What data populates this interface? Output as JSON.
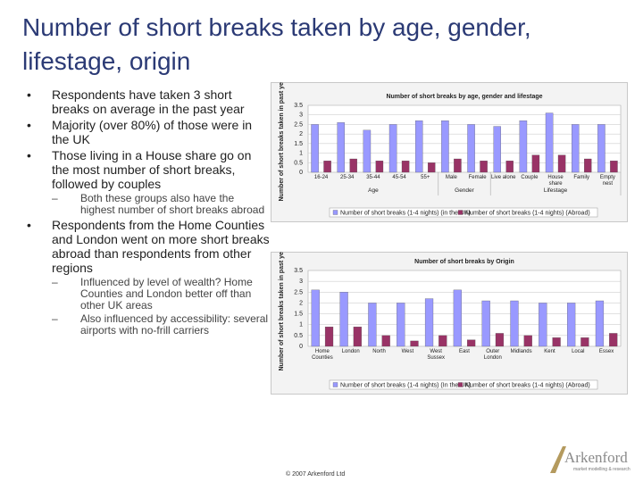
{
  "title": "Number of short breaks taken by age, gender, lifestage, origin",
  "bullets": [
    {
      "text": "Respondents have taken 3 short breaks on average in the past year"
    },
    {
      "text": "Majority (over 80%) of those were in the UK"
    },
    {
      "text": "Those living in a House share go on the most number of short breaks, followed by couples",
      "sub": [
        "Both these groups also have the highest number of short breaks abroad"
      ]
    },
    {
      "text": "Respondents from the Home Counties and London went on more short breaks abroad than respondents from other regions",
      "sub": [
        "Influenced by level of wealth? Home Counties and London better off than other UK areas",
        "Also influenced by accessibility: several airports with no-frill carriers"
      ]
    }
  ],
  "footer": "© 2007 Arkenford Ltd",
  "logo": {
    "name": "Arkenford",
    "tagline": "market modelling & research"
  },
  "chart_data": [
    {
      "type": "bar",
      "title": "Number of short breaks by  age, gender and lifestage",
      "y_label": "Number of short breaks taken in past year",
      "categories": [
        "16-24",
        "25-34",
        "35-44",
        "45-54",
        "55+",
        "Male",
        "Female",
        "Live alone",
        "Couple",
        "House share",
        "Family",
        "Empty nest"
      ],
      "groups": [
        "Age",
        "Gender",
        "Lifestage"
      ],
      "series": [
        {
          "name": "Number of short breaks (1-4 nights) (in the UK)",
          "color": "#9999ff",
          "values": [
            2.5,
            2.6,
            2.2,
            2.5,
            2.7,
            2.7,
            2.5,
            2.4,
            2.7,
            3.1,
            2.5,
            2.5
          ]
        },
        {
          "name": "Number of short breaks (1-4 nights) (Abroad)",
          "color": "#993366",
          "values": [
            0.6,
            0.7,
            0.6,
            0.6,
            0.5,
            0.7,
            0.6,
            0.6,
            0.9,
            0.9,
            0.7,
            0.6
          ]
        }
      ],
      "ylim": [
        0,
        3.5
      ],
      "yticks": [
        0,
        0.5,
        1,
        1.5,
        2,
        2.5,
        3,
        3.5
      ],
      "grid": true,
      "legend": "bottom"
    },
    {
      "type": "bar",
      "title": "Number of short breaks by  Origin",
      "y_label": "Number of short breaks taken in past year",
      "categories": [
        "Home Counties",
        "London",
        "North",
        "West",
        "West Sussex",
        "East",
        "Outer London",
        "Midlands",
        "Kent",
        "Local",
        "Essex"
      ],
      "series": [
        {
          "name": "Number of short breaks (1-4 nights) (In the UK)",
          "color": "#9999ff",
          "values": [
            2.6,
            2.5,
            2.0,
            2.0,
            2.2,
            2.6,
            2.1,
            2.1,
            2.0,
            2.0,
            2.1
          ]
        },
        {
          "name": "Number of short breaks (1-4 nights) (Abroad)",
          "color": "#993366",
          "values": [
            0.9,
            0.9,
            0.5,
            0.25,
            0.5,
            0.3,
            0.6,
            0.5,
            0.4,
            0.4,
            0.6
          ]
        }
      ],
      "ylim": [
        0,
        3.5
      ],
      "yticks": [
        0,
        0.5,
        1,
        1.5,
        2,
        2.5,
        3,
        3.5
      ],
      "grid": true,
      "legend": "bottom"
    }
  ]
}
